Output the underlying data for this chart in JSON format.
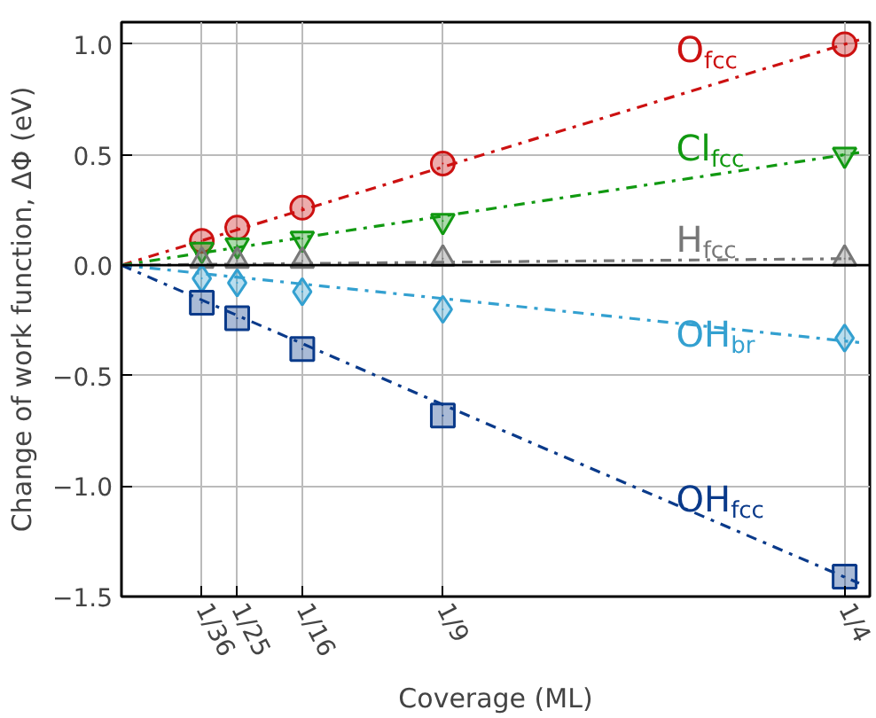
{
  "chart_data": {
    "type": "scatter",
    "xlabel": "Coverage (ML)",
    "ylabel": "Change of work function, ΔΦ (eV)",
    "x": [
      0.02778,
      0.04,
      0.0625,
      0.1111,
      0.25
    ],
    "xlim": [
      0,
      0.2587
    ],
    "ylim": [
      -1.5,
      1.1
    ],
    "xticks": [
      {
        "value": 0.02778,
        "label": "1/36"
      },
      {
        "value": 0.04,
        "label": "1/25"
      },
      {
        "value": 0.0625,
        "label": "1/16"
      },
      {
        "value": 0.1111,
        "label": "1/9"
      },
      {
        "value": 0.25,
        "label": "1/4"
      }
    ],
    "yticks": [
      {
        "value": -1.5,
        "label": "−1.5"
      },
      {
        "value": -1.0,
        "label": "−1.0"
      },
      {
        "value": -0.5,
        "label": "−0.5"
      },
      {
        "value": 0,
        "label": "0.0"
      },
      {
        "value": 0.5,
        "label": "0.5"
      },
      {
        "value": 1.0,
        "label": "1.0"
      }
    ],
    "grid": true,
    "ref_lines": [
      {
        "axis": "y",
        "value": 0,
        "color": "#000000",
        "line_style": "solid"
      }
    ],
    "series": [
      {
        "type": "line",
        "color": "#cc1111",
        "x": [
          0,
          0.125,
          0.255
        ],
        "values": [
          0,
          0.5,
          1.02
        ],
        "line_style": "dashdot"
      },
      {
        "type": "line",
        "color": "#119911",
        "x": [
          0,
          0.125,
          0.255
        ],
        "values": [
          0,
          0.25,
          0.51
        ],
        "line_style": "dashdot"
      },
      {
        "type": "line",
        "color": "#777777",
        "x": [
          0,
          0.125,
          0.255
        ],
        "values": [
          0,
          0.015,
          0.03
        ],
        "line_style": "dashdot"
      },
      {
        "type": "line",
        "color": "#33a0d0",
        "x": [
          0,
          0.125,
          0.255
        ],
        "values": [
          0,
          -0.17,
          -0.35
        ],
        "line_style": "dashdot"
      },
      {
        "type": "line",
        "color": "#0a3a8a",
        "x": [
          0,
          0.125,
          0.255
        ],
        "values": [
          0,
          -0.71,
          -1.44
        ],
        "line_style": "dashdot"
      },
      {
        "name": "O$_{fcc}$",
        "color": "#cc1111",
        "marker": "circle",
        "values": [
          0.11,
          0.17,
          0.26,
          0.46,
          1.0
        ]
      },
      {
        "name": "Cl$_{fcc}$",
        "color": "#119911",
        "marker": "triangle",
        "values": [
          0.07,
          0.09,
          0.12,
          0.2,
          0.5
        ]
      },
      {
        "name": "H$_{fcc}$",
        "color": "#777777",
        "marker": "triangle",
        "values": [
          0.02,
          0.02,
          0.02,
          0.03,
          0.03
        ]
      },
      {
        "name": "OH$_{br}$",
        "color": "#33a0d0",
        "marker": "diamond",
        "values": [
          -0.06,
          -0.08,
          -0.12,
          -0.2,
          -0.33
        ]
      },
      {
        "name": "OH$_{fcc}$",
        "color": "#0a3a8a",
        "marker": "square",
        "values": [
          -0.17,
          -0.24,
          -0.38,
          -0.68,
          -1.41
        ]
      }
    ]
  }
}
